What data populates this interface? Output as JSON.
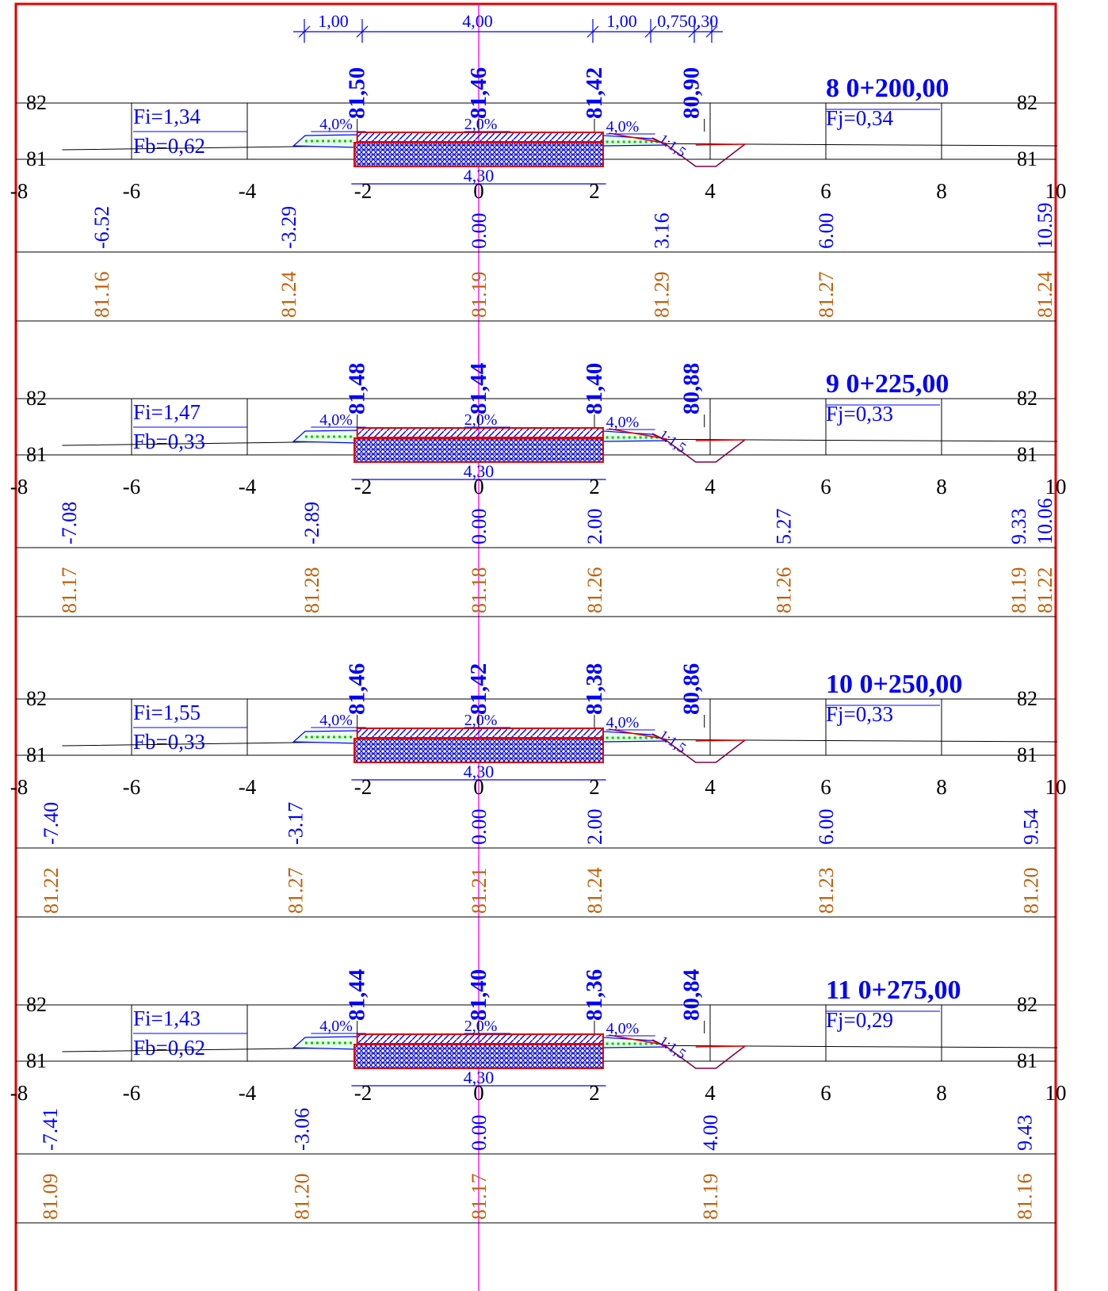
{
  "colors": {
    "frame": "#e00000",
    "centerline": "#ff00ff",
    "design": "#0000ff",
    "terrain": "#c0600a",
    "fill": "#00c800",
    "ditch": "#800040",
    "text": "#000000"
  },
  "top_dimensions": [
    "1,00",
    "4,00",
    "1,00",
    "0,75",
    "0,30"
  ],
  "sections": [
    {
      "number": "8",
      "station": "0+200,00",
      "fi": "Fi=1,34",
      "fb": "Fb=0,62",
      "fj": "Fj=0,34",
      "elev_labels": [
        "81,50",
        "81,46",
        "81,42",
        "80,90"
      ],
      "elev_axis": [
        "82",
        "81"
      ],
      "slope_left": "4,0%",
      "slope_center": "2,0%",
      "slope_right": "4,0%",
      "embank": "1:1,5",
      "width_label": "4,30",
      "x_ticks": [
        "-8",
        "-6",
        "-4",
        "-2",
        "0",
        "2",
        "4",
        "6",
        "8",
        "10"
      ],
      "offsets": [
        {
          "x": -6.52,
          "label": "-6.52"
        },
        {
          "x": -3.29,
          "label": "-3.29"
        },
        {
          "x": 0.0,
          "label": "0.00"
        },
        {
          "x": 3.16,
          "label": "3.16"
        },
        {
          "x": 6.0,
          "label": "6.00"
        },
        {
          "x": 10.59,
          "label": "10.59"
        }
      ],
      "terrain": [
        {
          "x": -6.52,
          "label": "81.16"
        },
        {
          "x": -3.29,
          "label": "81.24"
        },
        {
          "x": 0.0,
          "label": "81.19"
        },
        {
          "x": 3.16,
          "label": "81.29"
        },
        {
          "x": 6.0,
          "label": "81.27"
        },
        {
          "x": 10.59,
          "label": "81.24"
        }
      ]
    },
    {
      "number": "9",
      "station": "0+225,00",
      "fi": "Fi=1,47",
      "fb": "Fb=0,33",
      "fj": "Fj=0,33",
      "elev_labels": [
        "81,48",
        "81,44",
        "81,40",
        "80,88"
      ],
      "elev_axis": [
        "82",
        "81"
      ],
      "slope_left": "4,0%",
      "slope_center": "2,0%",
      "slope_right": "4,0%",
      "embank": "1:1,5",
      "width_label": "4,30",
      "x_ticks": [
        "-8",
        "-6",
        "-4",
        "-2",
        "0",
        "2",
        "4",
        "6",
        "8",
        "10"
      ],
      "offsets": [
        {
          "x": -7.08,
          "label": "-7.08"
        },
        {
          "x": -2.89,
          "label": "-2.89"
        },
        {
          "x": 0.0,
          "label": "0.00"
        },
        {
          "x": 2.0,
          "label": "2.00"
        },
        {
          "x": 5.27,
          "label": "5.27"
        },
        {
          "x": 9.33,
          "label": "9.33"
        },
        {
          "x": 10.06,
          "label": "10.06"
        }
      ],
      "terrain": [
        {
          "x": -7.08,
          "label": "81.17"
        },
        {
          "x": -2.89,
          "label": "81.28"
        },
        {
          "x": 0.0,
          "label": "81.18"
        },
        {
          "x": 2.0,
          "label": "81.26"
        },
        {
          "x": 5.27,
          "label": "81.26"
        },
        {
          "x": 9.33,
          "label": "81.19"
        },
        {
          "x": 10.06,
          "label": "81.22"
        }
      ]
    },
    {
      "number": "10",
      "station": "0+250,00",
      "fi": "Fi=1,55",
      "fb": "Fb=0,33",
      "fj": "Fj=0,33",
      "elev_labels": [
        "81,46",
        "81,42",
        "81,38",
        "80,86"
      ],
      "elev_axis": [
        "82",
        "81"
      ],
      "slope_left": "4,0%",
      "slope_center": "2,0%",
      "slope_right": "4,0%",
      "embank": "1:1,5",
      "width_label": "4,30",
      "x_ticks": [
        "-8",
        "-6",
        "-4",
        "-2",
        "0",
        "2",
        "4",
        "6",
        "8",
        "10"
      ],
      "offsets": [
        {
          "x": -7.4,
          "label": "-7.40"
        },
        {
          "x": -3.17,
          "label": "-3.17"
        },
        {
          "x": 0.0,
          "label": "0.00"
        },
        {
          "x": 2.0,
          "label": "2.00"
        },
        {
          "x": 6.0,
          "label": "6.00"
        },
        {
          "x": 9.54,
          "label": "9.54"
        }
      ],
      "terrain": [
        {
          "x": -7.4,
          "label": "81.22"
        },
        {
          "x": -3.17,
          "label": "81.27"
        },
        {
          "x": 0.0,
          "label": "81.21"
        },
        {
          "x": 2.0,
          "label": "81.24"
        },
        {
          "x": 6.0,
          "label": "81.23"
        },
        {
          "x": 9.54,
          "label": "81.20"
        }
      ]
    },
    {
      "number": "11",
      "station": "0+275,00",
      "fi": "Fi=1,43",
      "fb": "Fb=0,62",
      "fj": "Fj=0,29",
      "elev_labels": [
        "81,44",
        "81,40",
        "81,36",
        "80,84"
      ],
      "elev_axis": [
        "82",
        "81"
      ],
      "slope_left": "4,0%",
      "slope_center": "2,0%",
      "slope_right": "4,0%",
      "embank": "1:1,5",
      "width_label": "4,30",
      "x_ticks": [
        "-8",
        "-6",
        "-4",
        "-2",
        "0",
        "2",
        "4",
        "6",
        "8",
        "10"
      ],
      "offsets": [
        {
          "x": -7.41,
          "label": "-7.41"
        },
        {
          "x": -3.06,
          "label": "-3.06"
        },
        {
          "x": 0.0,
          "label": "0.00"
        },
        {
          "x": 4.0,
          "label": "4.00"
        },
        {
          "x": 9.43,
          "label": "9.43"
        }
      ],
      "terrain": [
        {
          "x": -7.41,
          "label": "81.09"
        },
        {
          "x": -3.06,
          "label": "81.20"
        },
        {
          "x": 0.0,
          "label": "81.17"
        },
        {
          "x": 4.0,
          "label": "81.19"
        },
        {
          "x": 9.43,
          "label": "81.16"
        }
      ]
    }
  ]
}
